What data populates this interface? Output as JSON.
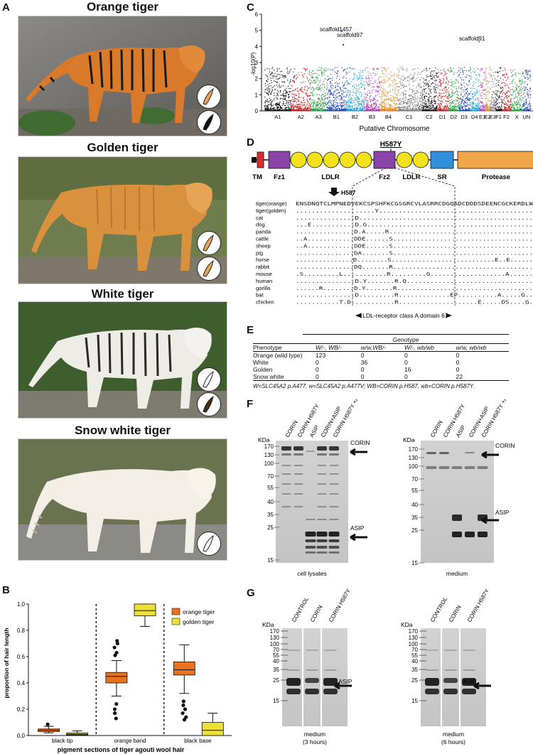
{
  "panels": {
    "A": "A",
    "B": "B",
    "C": "C",
    "D": "D",
    "E": "E",
    "F": "F",
    "G": "G"
  },
  "tigers": [
    {
      "title": "Orange tiger"
    },
    {
      "title": "Golden tiger"
    },
    {
      "title": "White tiger"
    },
    {
      "title": "Snow white tiger"
    }
  ],
  "colors": {
    "orange": "#e8731c",
    "golden": "#ecdf3a",
    "black": "#111111"
  },
  "chart_data": [
    {
      "type": "box",
      "panel": "B",
      "ylabel": "proportion of hair length",
      "xlabel": "pigment sections of tiger agouti wool hair",
      "categories": [
        "black tip",
        "orange band",
        "black base"
      ],
      "ylim": [
        0,
        1.0
      ],
      "yticks": [
        "0.0",
        "0.2",
        "0.4",
        "0.6",
        "0.8",
        "1.0"
      ],
      "legend": [
        "orange tiger",
        "golden tiger"
      ],
      "legend_position": "top-right",
      "series": [
        {
          "name": "orange tiger",
          "boxes": [
            {
              "min": 0.02,
              "q1": 0.03,
              "median": 0.04,
              "q3": 0.05,
              "max": 0.07,
              "outliers": [
                0.085
              ]
            },
            {
              "min": 0.3,
              "q1": 0.4,
              "median": 0.45,
              "q3": 0.48,
              "max": 0.57,
              "outliers": [
                0.72,
                0.7,
                0.67,
                0.63,
                0.61,
                0.24,
                0.2,
                0.17,
                0.13
              ]
            },
            {
              "min": 0.32,
              "q1": 0.46,
              "median": 0.5,
              "q3": 0.56,
              "max": 0.69,
              "outliers": [
                0.26,
                0.23,
                0.2,
                0.17,
                0.14,
                0.12
              ]
            }
          ]
        },
        {
          "name": "golden tiger",
          "boxes": [
            {
              "min": 0.0,
              "q1": 0.005,
              "median": 0.01,
              "q3": 0.02,
              "max": 0.035,
              "outliers": []
            },
            {
              "min": 0.83,
              "q1": 0.91,
              "median": 0.95,
              "q3": 1.0,
              "max": 1.0,
              "outliers": []
            },
            {
              "min": 0.0,
              "q1": 0.0,
              "median": 0.04,
              "q3": 0.1,
              "max": 0.17,
              "outliers": []
            }
          ]
        }
      ]
    },
    {
      "type": "manhattan",
      "panel": "C",
      "ylabel": "-log10(P)",
      "xlabel": "Putative Chromosome",
      "ylim": [
        0,
        6
      ],
      "yticks": [
        "0",
        "1",
        "2",
        "3",
        "4",
        "5",
        "6"
      ],
      "chromosomes": [
        "A1",
        "A2",
        "A3",
        "B1",
        "B2",
        "B3",
        "B4",
        "C1",
        "C2",
        "D1",
        "D2",
        "D3",
        "D4",
        "E1",
        "E2",
        "E3",
        "F1",
        "F2",
        "X",
        "UN"
      ],
      "annotations": [
        "scaffold1457",
        "scaffold97",
        "scaffold91"
      ]
    }
  ],
  "panel_d": {
    "mutation": "H587Y",
    "arrow_label": "H587",
    "domains": [
      "TM",
      "Fz1",
      "LDLR",
      "Fz2",
      "LDLR",
      "SR",
      "Protease"
    ],
    "domain_note": "LDL-receptor class A domain 6",
    "species": [
      "tiger(orange)",
      "tiger(golden)",
      "cat",
      "dog",
      "panda",
      "cattle",
      "sheep",
      "pig",
      "horse",
      "rabbit",
      "mouse",
      "human",
      "gorilla",
      "bat",
      "chicken"
    ],
    "sequences": [
      "ENSDNQTCLMPNEDVEKCSPSHFKCGSGRCVLASRRCDGQADCDDDSDEENCGCKERDLW",
      "....................Y.......................................",
      "...............D............................................",
      "...E...........D.G..........................................",
      "...............D.A.....R.....................................",
      "..A............DDE......S....................................",
      "..A............DDE......S....................................",
      "...............DA.......S....................................",
      "...............D........S...........................E..E......",
      "...............DQ.......R....................................",
      ".S.........L...........R.........G...................A......",
      "...............D.Y.......R.Q................................",
      "......R........D.Y.......R...................................",
      "...............D.........R.............EP..........A.....G..",
      "...........T.D...........R....................E.....DS....G."
    ]
  },
  "panel_e": {
    "genotype_header": "Genotype",
    "columns": [
      "Phenotype",
      "W/-, WB/-",
      "w/w,WB/-",
      "W/-, wb/wb",
      "w/w, wb/wb"
    ],
    "rows": [
      [
        "Orange (wild type)",
        "123",
        "0",
        "0",
        "0"
      ],
      [
        "White",
        "0",
        "36",
        "0",
        "0"
      ],
      [
        "Golden",
        "0",
        "0",
        "16",
        "0"
      ],
      [
        "Snow white",
        "0",
        "0",
        "0",
        "22"
      ]
    ],
    "footnote": "W=SLC45A2 p.A477, w=SLC45A2 p.A477V; WB=CORIN p.H587, wb=CORIN p.H587Y."
  },
  "panel_f": {
    "lanes": [
      "CORIN",
      "CORIN H587Y",
      "ASIP",
      "CORIN+ASIP",
      "CORIN H587Y +ASIP"
    ],
    "kda_label": "KDa",
    "left_markers": [
      "170",
      "130",
      "100",
      "70",
      "55",
      "40",
      "35",
      "25",
      "15"
    ],
    "right_markers": [
      "170",
      "130",
      "100",
      "70",
      "55",
      "40",
      "35",
      "25",
      "15"
    ],
    "bands": [
      "CORIN",
      "ASIP"
    ],
    "captions": [
      "cell lysates",
      "medium"
    ]
  },
  "panel_g": {
    "lanes": [
      "CONTROL",
      "CORIN",
      "CORIN H587Y"
    ],
    "kda_label": "KDa",
    "markers": [
      "170",
      "130",
      "100",
      "70",
      "55",
      "40",
      "35",
      "25",
      "15"
    ],
    "band": "ASIP",
    "captions": [
      "medium",
      "(3 hours)",
      "medium",
      "(6 hours)"
    ]
  }
}
